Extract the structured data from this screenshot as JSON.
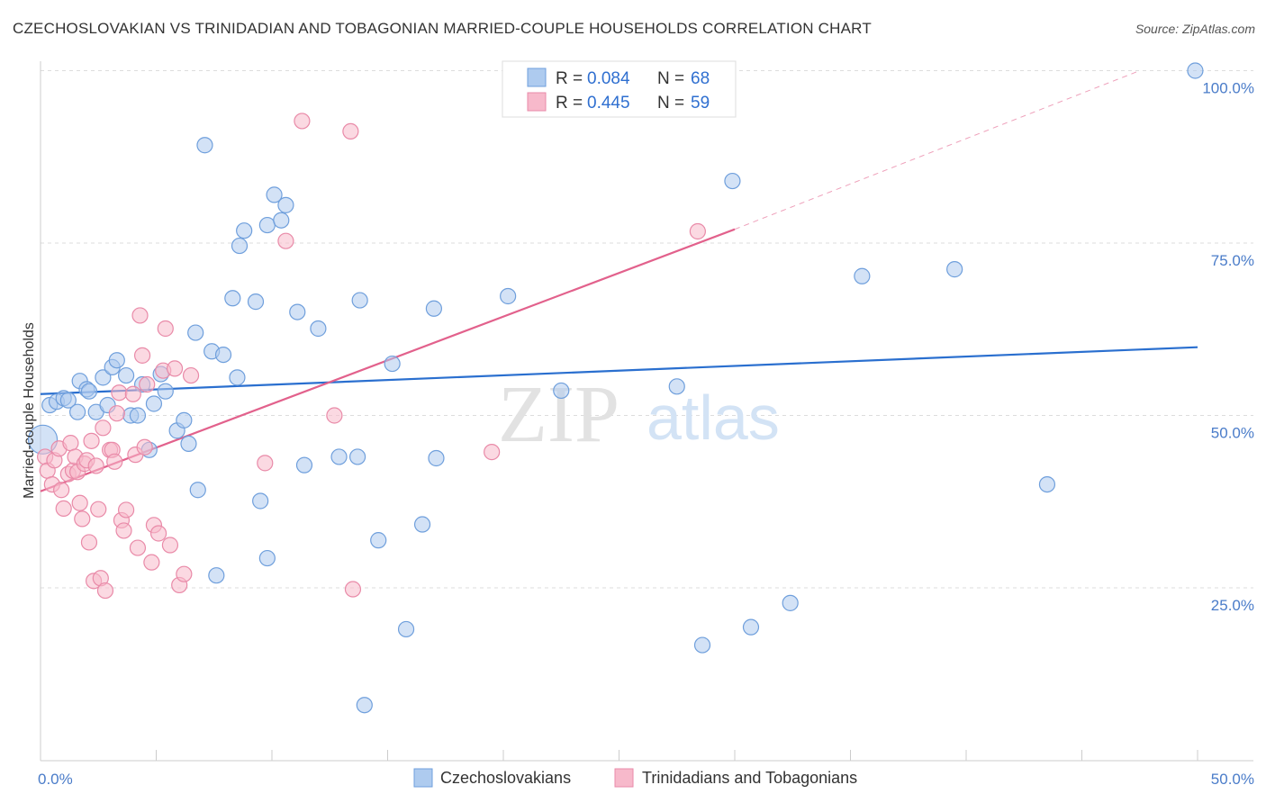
{
  "title": "CZECHOSLOVAKIAN VS TRINIDADIAN AND TOBAGONIAN MARRIED-COUPLE HOUSEHOLDS CORRELATION CHART",
  "source": "Source: ZipAtlas.com",
  "watermark": {
    "zip": "ZIP",
    "atlas": "atlas"
  },
  "colors": {
    "blue_fill": "#aecbef",
    "blue_stroke": "#6f9fdc",
    "blue_line": "#2a6fcf",
    "pink_fill": "#f7b9cb",
    "pink_stroke": "#e98aa8",
    "pink_line": "#e2618c",
    "grid": "#dddddd",
    "tick_text": "#4a7cc9"
  },
  "legend": {
    "r_label": "R =",
    "n_label": "N =",
    "series": [
      {
        "r": "0.084",
        "n": "68"
      },
      {
        "r": "0.445",
        "n": "59"
      }
    ]
  },
  "chart_data": {
    "type": "scatter",
    "title": "CZECHOSLOVAKIAN VS TRINIDADIAN AND TOBAGONIAN MARRIED-COUPLE HOUSEHOLDS CORRELATION CHART",
    "xlabel": "",
    "ylabel": "Married-couple Households",
    "xlim": [
      0,
      50
    ],
    "ylim": [
      0,
      102
    ],
    "x_tick_labels": [
      "0.0%",
      "50.0%"
    ],
    "y_ticks": [
      25,
      50,
      75,
      100
    ],
    "y_tick_labels": [
      "25.0%",
      "50.0%",
      "75.0%",
      "100.0%"
    ],
    "grid": true,
    "series": [
      {
        "name": "Czechoslovakians",
        "color": "#6f9fdc",
        "trend": {
          "x": [
            0,
            50
          ],
          "y": [
            53.1,
            59.9
          ]
        },
        "points": [
          [
            0.1,
            46.5
          ],
          [
            0.4,
            51.5
          ],
          [
            0.7,
            52.0
          ],
          [
            1.0,
            52.5
          ],
          [
            1.2,
            52.2
          ],
          [
            1.6,
            50.5
          ],
          [
            1.7,
            55.0
          ],
          [
            2.0,
            53.8
          ],
          [
            2.1,
            53.5
          ],
          [
            2.4,
            50.5
          ],
          [
            2.7,
            55.5
          ],
          [
            2.9,
            51.5
          ],
          [
            3.1,
            57.0
          ],
          [
            3.3,
            58.0
          ],
          [
            3.7,
            55.8
          ],
          [
            3.9,
            50.0
          ],
          [
            4.2,
            50.0
          ],
          [
            4.4,
            54.5
          ],
          [
            4.7,
            45.0
          ],
          [
            4.9,
            51.7
          ],
          [
            5.2,
            56.0
          ],
          [
            5.4,
            53.5
          ],
          [
            5.9,
            47.8
          ],
          [
            6.2,
            49.3
          ],
          [
            6.4,
            45.9
          ],
          [
            6.7,
            62.0
          ],
          [
            6.8,
            39.2
          ],
          [
            7.1,
            89.2
          ],
          [
            7.4,
            59.3
          ],
          [
            7.6,
            26.8
          ],
          [
            7.9,
            58.8
          ],
          [
            8.3,
            67.0
          ],
          [
            8.5,
            55.5
          ],
          [
            8.6,
            74.6
          ],
          [
            8.8,
            76.8
          ],
          [
            9.3,
            66.5
          ],
          [
            9.5,
            37.6
          ],
          [
            9.8,
            29.3
          ],
          [
            9.8,
            77.6
          ],
          [
            10.1,
            82.0
          ],
          [
            10.4,
            78.3
          ],
          [
            10.6,
            80.5
          ],
          [
            11.1,
            65.0
          ],
          [
            11.4,
            42.8
          ],
          [
            12.0,
            62.6
          ],
          [
            12.9,
            44.0
          ],
          [
            13.7,
            44.0
          ],
          [
            13.8,
            66.7
          ],
          [
            14.0,
            8.0
          ],
          [
            14.6,
            31.9
          ],
          [
            15.2,
            57.5
          ],
          [
            15.8,
            19.0
          ],
          [
            16.5,
            34.2
          ],
          [
            17.0,
            65.5
          ],
          [
            17.1,
            43.8
          ],
          [
            20.2,
            67.3
          ],
          [
            22.5,
            53.6
          ],
          [
            27.5,
            54.2
          ],
          [
            28.6,
            16.7
          ],
          [
            29.9,
            84.0
          ],
          [
            30.7,
            19.3
          ],
          [
            32.4,
            22.8
          ],
          [
            35.5,
            70.2
          ],
          [
            39.5,
            71.2
          ],
          [
            43.5,
            40.0
          ],
          [
            49.9,
            100.0
          ]
        ]
      },
      {
        "name": "Trinidadians and Tobagonians",
        "color": "#e98aa8",
        "trend": {
          "x": [
            0,
            30
          ],
          "y": [
            39.0,
            77.0
          ]
        },
        "trend_extension": {
          "x": [
            30,
            47.5
          ],
          "y": [
            77.0,
            100.0
          ]
        },
        "points": [
          [
            0.2,
            44.0
          ],
          [
            0.3,
            42.0
          ],
          [
            0.5,
            40.0
          ],
          [
            0.6,
            43.5
          ],
          [
            0.8,
            45.2
          ],
          [
            0.9,
            39.2
          ],
          [
            1.0,
            36.5
          ],
          [
            1.2,
            41.5
          ],
          [
            1.3,
            46.0
          ],
          [
            1.4,
            42.0
          ],
          [
            1.5,
            44.0
          ],
          [
            1.6,
            41.8
          ],
          [
            1.7,
            37.3
          ],
          [
            1.8,
            35.0
          ],
          [
            1.9,
            43.0
          ],
          [
            2.0,
            43.5
          ],
          [
            2.1,
            31.6
          ],
          [
            2.2,
            46.3
          ],
          [
            2.3,
            26.0
          ],
          [
            2.4,
            42.7
          ],
          [
            2.5,
            36.4
          ],
          [
            2.6,
            26.4
          ],
          [
            2.7,
            48.2
          ],
          [
            2.8,
            24.6
          ],
          [
            3.0,
            45.0
          ],
          [
            3.1,
            45.0
          ],
          [
            3.2,
            43.3
          ],
          [
            3.3,
            50.3
          ],
          [
            3.4,
            53.3
          ],
          [
            3.5,
            34.8
          ],
          [
            3.6,
            33.3
          ],
          [
            3.7,
            36.3
          ],
          [
            4.0,
            53.1
          ],
          [
            4.1,
            44.3
          ],
          [
            4.2,
            30.8
          ],
          [
            4.3,
            64.5
          ],
          [
            4.4,
            58.7
          ],
          [
            4.5,
            45.4
          ],
          [
            4.6,
            54.5
          ],
          [
            4.8,
            28.7
          ],
          [
            4.9,
            34.1
          ],
          [
            5.1,
            32.9
          ],
          [
            5.3,
            56.5
          ],
          [
            5.4,
            62.6
          ],
          [
            5.6,
            31.2
          ],
          [
            5.8,
            56.8
          ],
          [
            6.0,
            25.4
          ],
          [
            6.2,
            27.0
          ],
          [
            6.5,
            55.8
          ],
          [
            9.7,
            43.1
          ],
          [
            10.6,
            75.3
          ],
          [
            11.3,
            92.7
          ],
          [
            12.7,
            50.0
          ],
          [
            13.5,
            24.8
          ],
          [
            13.4,
            91.2
          ],
          [
            19.5,
            44.7
          ],
          [
            28.4,
            76.7
          ]
        ]
      }
    ]
  },
  "bottom_legend": [
    "Czechoslovakians",
    "Trinidadians and Tobagonians"
  ]
}
